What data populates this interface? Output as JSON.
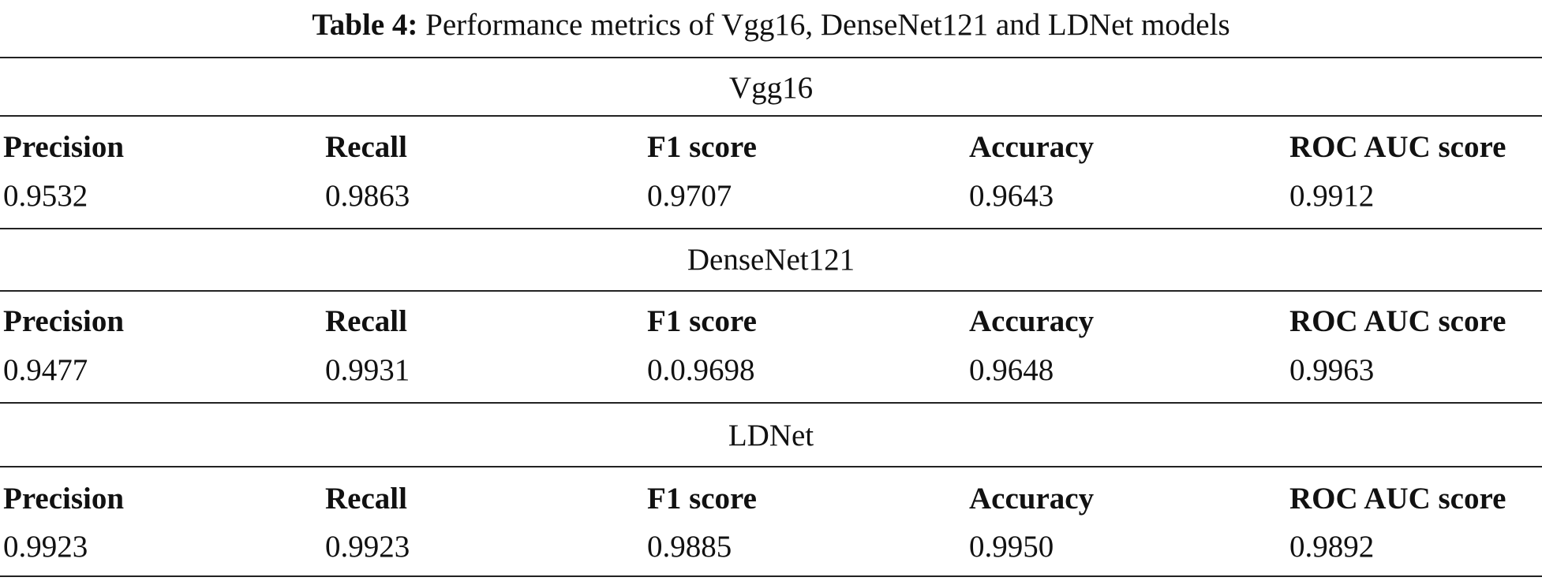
{
  "caption": {
    "label": "Table 4:",
    "text": "Performance metrics of Vgg16, DenseNet121 and LDNet models"
  },
  "columns": [
    "Precision",
    "Recall",
    "F1 score",
    "Accuracy",
    "ROC AUC score"
  ],
  "groups": [
    {
      "name": "Vgg16",
      "values": [
        "0.9532",
        "0.9863",
        "0.9707",
        "0.9643",
        "0.9912"
      ]
    },
    {
      "name": "DenseNet121",
      "values": [
        "0.9477",
        "0.9931",
        "0.0.9698",
        "0.9648",
        "0.9963"
      ]
    },
    {
      "name": "LDNet",
      "values": [
        "0.9923",
        "0.9923",
        "0.9885",
        "0.9950",
        "0.9892"
      ]
    }
  ]
}
